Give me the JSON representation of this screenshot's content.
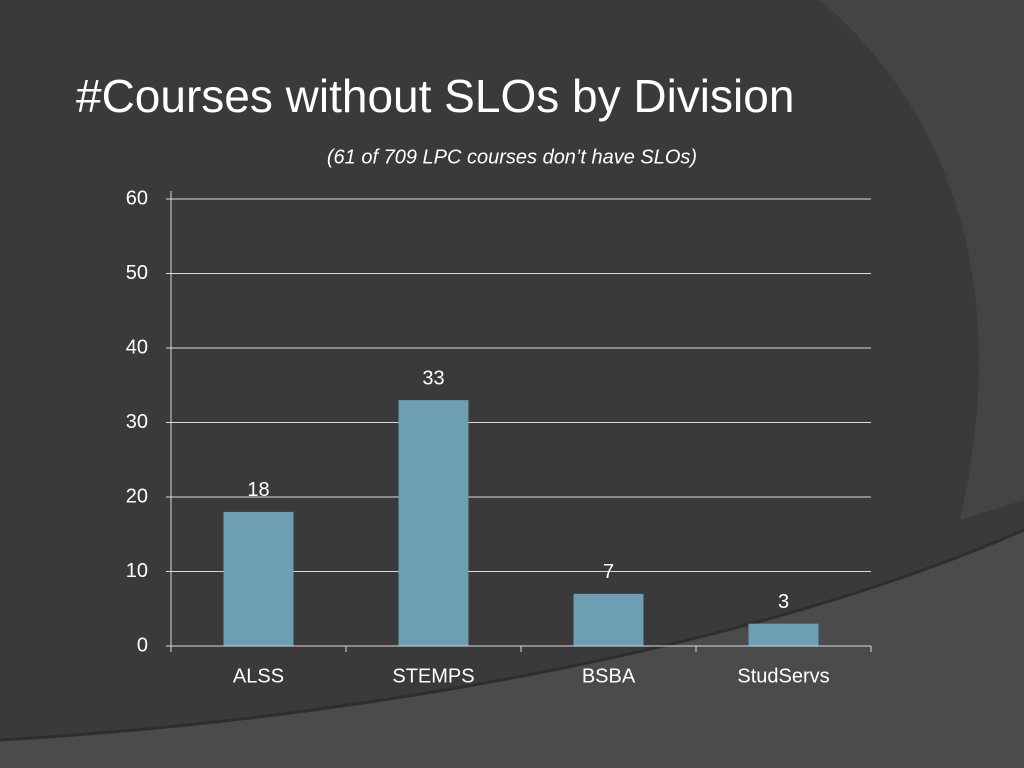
{
  "chart_data": {
    "type": "bar",
    "title": "#Courses without SLOs by Division",
    "subtitle": "(61 of 709 LPC courses don’t have SLOs)",
    "categories": [
      "ALSS",
      "STEMPS",
      "BSBA",
      "StudServs"
    ],
    "values": [
      18,
      33,
      7,
      3
    ],
    "color": "#6b9fb1",
    "ylim": [
      0,
      60
    ],
    "yticks": [
      0,
      10,
      20,
      30,
      40,
      50,
      60
    ],
    "grid": true
  }
}
